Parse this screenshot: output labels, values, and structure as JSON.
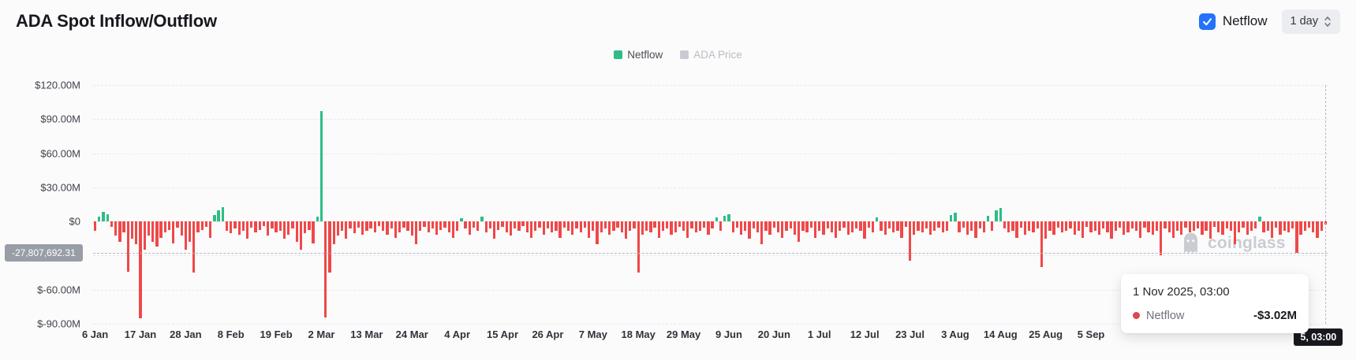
{
  "header": {
    "title": "ADA Spot Inflow/Outflow",
    "netflow_toggle": {
      "label": "Netflow",
      "checked": true
    },
    "interval_select": {
      "value": "1 day"
    }
  },
  "legend": [
    {
      "label": "Netflow",
      "color": "#2ebd85",
      "active": true
    },
    {
      "label": "ADA Price",
      "color": "#c8cbd1",
      "active": false
    }
  ],
  "watermark": "coinglass",
  "colors": {
    "accent_blue": "#2472fc",
    "positive_green": "#2ebd85",
    "negative_red": "#f04848"
  },
  "crosshair": {
    "y_label": "-27,807,692.31",
    "y_value_millions": -27.8077,
    "x_label": "5, 03:00",
    "x_day_index": 299
  },
  "tooltip": {
    "title": "1 Nov 2025, 03:00",
    "dot_color": "#e2444a",
    "rows": [
      {
        "label": "Netflow",
        "value": "-$3.02M"
      }
    ]
  },
  "chart_data": {
    "type": "bar",
    "title": "ADA Spot Inflow/Outflow",
    "series_name": "Netflow",
    "interval": "1 day",
    "unit": "USD millions",
    "start_date": "6 Jan 2025",
    "end_date": "1 Nov 2025",
    "ylim": [
      -90,
      120
    ],
    "grid": true,
    "legend_position": "top-center",
    "gridline_values_millions": [
      120,
      90,
      60,
      30,
      0,
      -30,
      -60,
      -90
    ],
    "y_ticks": [
      {
        "label": "$120.00M",
        "value": 120
      },
      {
        "label": "$90.00M",
        "value": 90
      },
      {
        "label": "$60.00M",
        "value": 60
      },
      {
        "label": "$30.00M",
        "value": 30
      },
      {
        "label": "$0",
        "value": 0
      },
      {
        "label": "$-60.00M",
        "value": -60
      },
      {
        "label": "$-90.00M",
        "value": -90
      }
    ],
    "x_ticks": [
      {
        "label": "6 Jan",
        "day": 0
      },
      {
        "label": "17 Jan",
        "day": 11
      },
      {
        "label": "28 Jan",
        "day": 22
      },
      {
        "label": "8 Feb",
        "day": 33
      },
      {
        "label": "19 Feb",
        "day": 44
      },
      {
        "label": "2 Mar",
        "day": 55
      },
      {
        "label": "13 Mar",
        "day": 66
      },
      {
        "label": "24 Mar",
        "day": 77
      },
      {
        "label": "4 Apr",
        "day": 88
      },
      {
        "label": "15 Apr",
        "day": 99
      },
      {
        "label": "26 Apr",
        "day": 110
      },
      {
        "label": "7 May",
        "day": 121
      },
      {
        "label": "18 May",
        "day": 132
      },
      {
        "label": "29 May",
        "day": 143
      },
      {
        "label": "9 Jun",
        "day": 154
      },
      {
        "label": "20 Jun",
        "day": 165
      },
      {
        "label": "1 Jul",
        "day": 176
      },
      {
        "label": "12 Jul",
        "day": 187
      },
      {
        "label": "23 Jul",
        "day": 198
      },
      {
        "label": "3 Aug",
        "day": 209
      },
      {
        "label": "14 Aug",
        "day": 220
      },
      {
        "label": "25 Aug",
        "day": 231
      },
      {
        "label": "5 Sep",
        "day": 242
      }
    ],
    "positive_color": "#2ebd85",
    "negative_color": "#f04848",
    "values_millions": [
      -8.2,
      4.5,
      8.1,
      6.6,
      -4.8,
      -12.4,
      -17.9,
      -9.6,
      -44.6,
      -15.2,
      -19.8,
      -85.3,
      -24.7,
      -12.1,
      -17.6,
      -21.9,
      -14.8,
      -9.9,
      -7.7,
      -19.5,
      -5.2,
      -12.3,
      -24.6,
      -17.8,
      -44.9,
      -9.8,
      -7.6,
      -4.9,
      -14.8,
      5.8,
      9.7,
      12.3,
      -7.9,
      -10.2,
      -6.1,
      -11.8,
      -8.3,
      -14.9,
      -5.4,
      -9.8,
      -7.7,
      -4.2,
      -12.1,
      -6.3,
      -9.7,
      -8.1,
      -15.3,
      -11.8,
      -6.2,
      -17.9,
      -24.8,
      -10.3,
      -7.8,
      -19.6,
      4.6,
      96.8,
      -84.7,
      -44.8,
      -19.7,
      -12.2,
      -8.4,
      -14.9,
      -6.3,
      -10.1,
      -5.2,
      -11.8,
      -7.9,
      -6.4,
      -9.8,
      -4.1,
      -8.2,
      -11.9,
      -6.1,
      -14.8,
      -9.9,
      -5.3,
      -8.1,
      -12.2,
      -19.8,
      -8.3,
      -5.1,
      -9.9,
      -6.2,
      -11.8,
      -7.7,
      -5.3,
      -9.8,
      -14.7,
      -7.9,
      3.2,
      -6.1,
      -11.9,
      -5.2,
      -8.3,
      4.1,
      -9.8,
      -6.2,
      -14.9,
      -7.8,
      -5.1,
      -9.9,
      -12.1,
      -6.3,
      -8.2,
      -4.4,
      -9.7,
      -14.8,
      -8.1,
      -5.2,
      -11.9,
      -6.4,
      -9.8,
      -7.9,
      -14.6,
      -5.3,
      -8.1,
      -11.9,
      -6.2,
      -9.8,
      -5.4,
      -14.7,
      -8.3,
      -19.8,
      -9.9,
      -6.1,
      -11.8,
      -8.2,
      -5.3,
      -9.7,
      -14.9,
      -8.4,
      -6.2,
      -44.7,
      -11.9,
      -8.1,
      -9.8,
      -5.2,
      -14.8,
      -8.3,
      -6.4,
      -11.9,
      -9.7,
      -5.1,
      -8.2,
      -14.7,
      -6.3,
      -9.8,
      -8.1,
      -5.2,
      -11.9,
      -6.3,
      3.4,
      -8.2,
      4.8,
      6.2,
      -9.9,
      -5.4,
      -11.8,
      -8.3,
      -14.9,
      -6.1,
      -9.8,
      -19.7,
      -8.2,
      -11.9,
      -5.3,
      -9.7,
      -14.8,
      -8.4,
      -6.2,
      -11.8,
      -17.9,
      -8.1,
      -9.9,
      -5.2,
      -14.7,
      -8.3,
      -11.9,
      -6.1,
      -9.8,
      -14.7,
      -8.2,
      -5.4,
      -11.8,
      -9.9,
      -6.3,
      -8.1,
      -14.9,
      -5.2,
      -9.7,
      3.9,
      -8.4,
      -11.9,
      -6.2,
      -9.8,
      -8.3,
      -14.8,
      -5.1,
      -34.8,
      -11.9,
      -8.2,
      -9.9,
      -6.4,
      -11.8,
      -8.1,
      -5.3,
      -9.8,
      -8.2,
      5.6,
      7.9,
      -9.9,
      -5.2,
      -11.8,
      -8.3,
      -14.7,
      -6.1,
      -9.8,
      4.7,
      -8.2,
      9.8,
      12.1,
      -6.3,
      -9.9,
      -8.1,
      -14.8,
      -5.4,
      -11.9,
      -8.3,
      -9.7,
      -6.2,
      -39.8,
      -14.9,
      -8.1,
      -11.8,
      -5.3,
      -9.9,
      -8.2,
      -6.4,
      -11.9,
      -8.3,
      -14.8,
      -5.1,
      -9.8,
      -8.2,
      -11.9,
      -6.3,
      -9.7,
      -14.9,
      -8.4,
      -5.2,
      -11.8,
      -9.9,
      -6.1,
      -8.3,
      -14.7,
      -5.4,
      -9.8,
      -11.9,
      -8.2,
      -29.7,
      -6.2,
      -9.9,
      -14.8,
      -8.1,
      -11.9,
      -5.3,
      -9.8,
      -8.4,
      -6.2,
      -11.8,
      -8.3,
      -14.9,
      -5.1,
      -9.9,
      -11.8,
      -6.4,
      -8.2,
      -19.8,
      -9.8,
      -5.3,
      -11.9,
      -8.1,
      -6.3,
      4.2,
      -9.9,
      -8.4,
      -14.8,
      -5.2,
      -11.9,
      -8.2,
      -9.7,
      -6.1,
      -27.8,
      -11.8,
      -8.3,
      -5.4,
      -9.8,
      -14.7,
      -8.2,
      -3.02
    ]
  }
}
